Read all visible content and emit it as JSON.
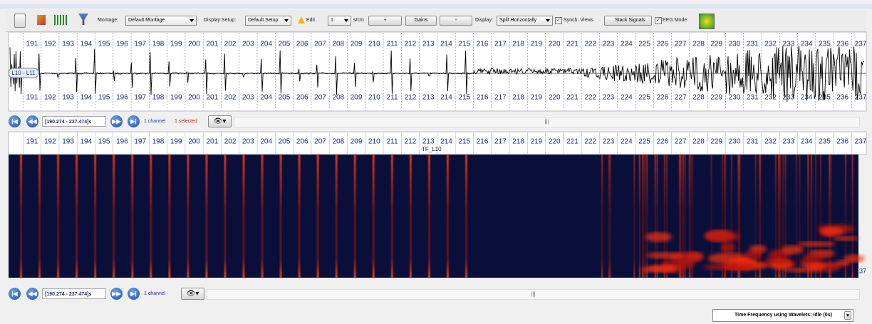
{
  "toolbar": {
    "montage_label": "Montage:",
    "montage": "Default Montage",
    "display_setup_label": "Display Setup:",
    "display_setup": "Default Setup",
    "edit": "Edit",
    "scale": "1",
    "scale_unit": "s/cm",
    "plus": "+",
    "gains": "Gains",
    "minus": "-",
    "display_label": "Display:",
    "display": "Split Horizontally",
    "synch_views": "Synch. Views",
    "stack_signals": "Stack Signals",
    "eeg_mode": "EEG Mode"
  },
  "time_ticks": [
    191,
    192,
    193,
    194,
    195,
    196,
    197,
    198,
    199,
    200,
    201,
    202,
    203,
    204,
    205,
    206,
    207,
    208,
    209,
    210,
    211,
    212,
    213,
    214,
    215,
    216,
    217,
    218,
    219,
    220,
    221,
    222,
    223,
    224,
    225,
    226,
    227,
    228,
    229,
    230,
    231,
    232,
    233,
    234,
    235,
    236,
    237
  ],
  "signal_panel": {
    "channel_label": "L10 - L11"
  },
  "signal_nav": {
    "time_range": "[190.274 - 237.474]s",
    "channels": "1 channel",
    "selected": "1 selected",
    "scroll_grip": "|||"
  },
  "tf_panel": {
    "title": "TF_L10",
    "edge_label": "37"
  },
  "tf_nav": {
    "time_range": "[190.274 - 237.474]s",
    "channels": "1 channel",
    "scroll_grip": "|||"
  },
  "status": {
    "text": "Time Frequency using Wavelets: Idle (0s)"
  }
}
